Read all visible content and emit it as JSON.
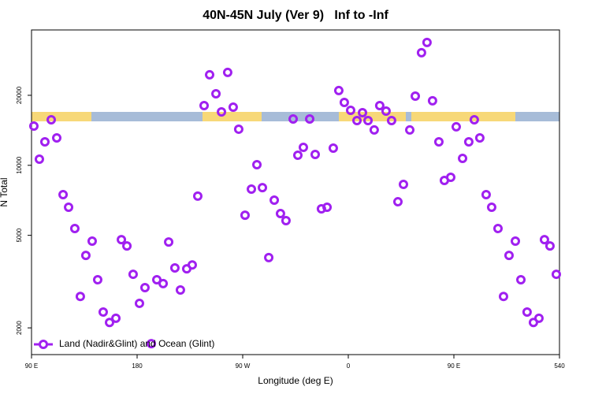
{
  "chart_data": {
    "type": "scatter",
    "title": "40N-45N July (Ver 9)   Inf to -Inf",
    "x_label": "Longitude (deg E)",
    "y_label": "N Total",
    "log_y": true,
    "legend": "bottom-left",
    "x": [
      92.0,
      96.7,
      101.4,
      106.8,
      111.5,
      116.9,
      121.6,
      126.9,
      131.6,
      136.3,
      141.7,
      146.4,
      151.1,
      156.5,
      161.9,
      166.6,
      171.3,
      176.6,
      182.0,
      186.7,
      192.1,
      196.8,
      202.2,
      206.9,
      212.2,
      216.9,
      222.3,
      227.0,
      231.7,
      237.1,
      241.8,
      247.2,
      251.9,
      257.2,
      261.9,
      266.6,
      272.0,
      277.4,
      282.1,
      286.8,
      292.2,
      296.9,
      302.2,
      306.9,
      313.0,
      317.0,
      321.7,
      327.1,
      331.8,
      337.1,
      341.9,
      347.2,
      351.9,
      356.6,
      362.0,
      367.4,
      372.1,
      376.8,
      382.1,
      386.8,
      392.2,
      396.9,
      402.3,
      407.0,
      412.4,
      417.1,
      422.4,
      427.1,
      431.8,
      437.2,
      441.9,
      447.3,
      452.0,
      457.4,
      462.7,
      467.4,
      472.1,
      477.5,
      482.2,
      487.6,
      492.3,
      497.0,
      502.4,
      507.1,
      512.4,
      517.8,
      522.5,
      527.2,
      531.9,
      537.3
    ],
    "series": [
      {
        "name": "Land (Nadir&Glint) and Ocean (Glint)",
        "color": "#a020f0",
        "values": [
          14750,
          10630,
          12620,
          15700,
          13120,
          7480,
          6600,
          5350,
          2730,
          4100,
          4720,
          3220,
          2340,
          2110,
          2200,
          4790,
          4500,
          3400,
          2550,
          2980,
          1710,
          3220,
          3100,
          4680,
          3620,
          2910,
          3590,
          3730,
          7370,
          18070,
          24500,
          20310,
          16970,
          25080,
          17790,
          14300,
          6100,
          7900,
          10060,
          8020,
          4010,
          7080,
          6200,
          5780,
          15820,
          11050,
          11950,
          15820,
          11140,
          6500,
          6600,
          11850,
          20960,
          18640,
          17240,
          15580,
          16840,
          15580,
          14190,
          18070,
          17110,
          15580,
          6970,
          8280,
          14190,
          19840,
          30490,
          33750,
          18940,
          12620,
          8610,
          8880,
          14640,
          10710,
          12620,
          15700,
          13120,
          7480,
          6600,
          5350,
          2730,
          4100,
          4720,
          3220,
          2340,
          2110,
          2200,
          4790,
          4500,
          3400
        ]
      }
    ],
    "xlim": [
      90,
      540
    ],
    "xticks": [
      {
        "value": 90,
        "label": "90 E"
      },
      180,
      {
        "value": 270,
        "label": "90 W"
      },
      {
        "value": 360,
        "label": "0"
      },
      {
        "value": 450,
        "label": "90 E"
      },
      540
    ],
    "ylim": [
      1535,
      38200
    ],
    "yticks": [
      2000,
      5000,
      10000,
      20000
    ]
  }
}
